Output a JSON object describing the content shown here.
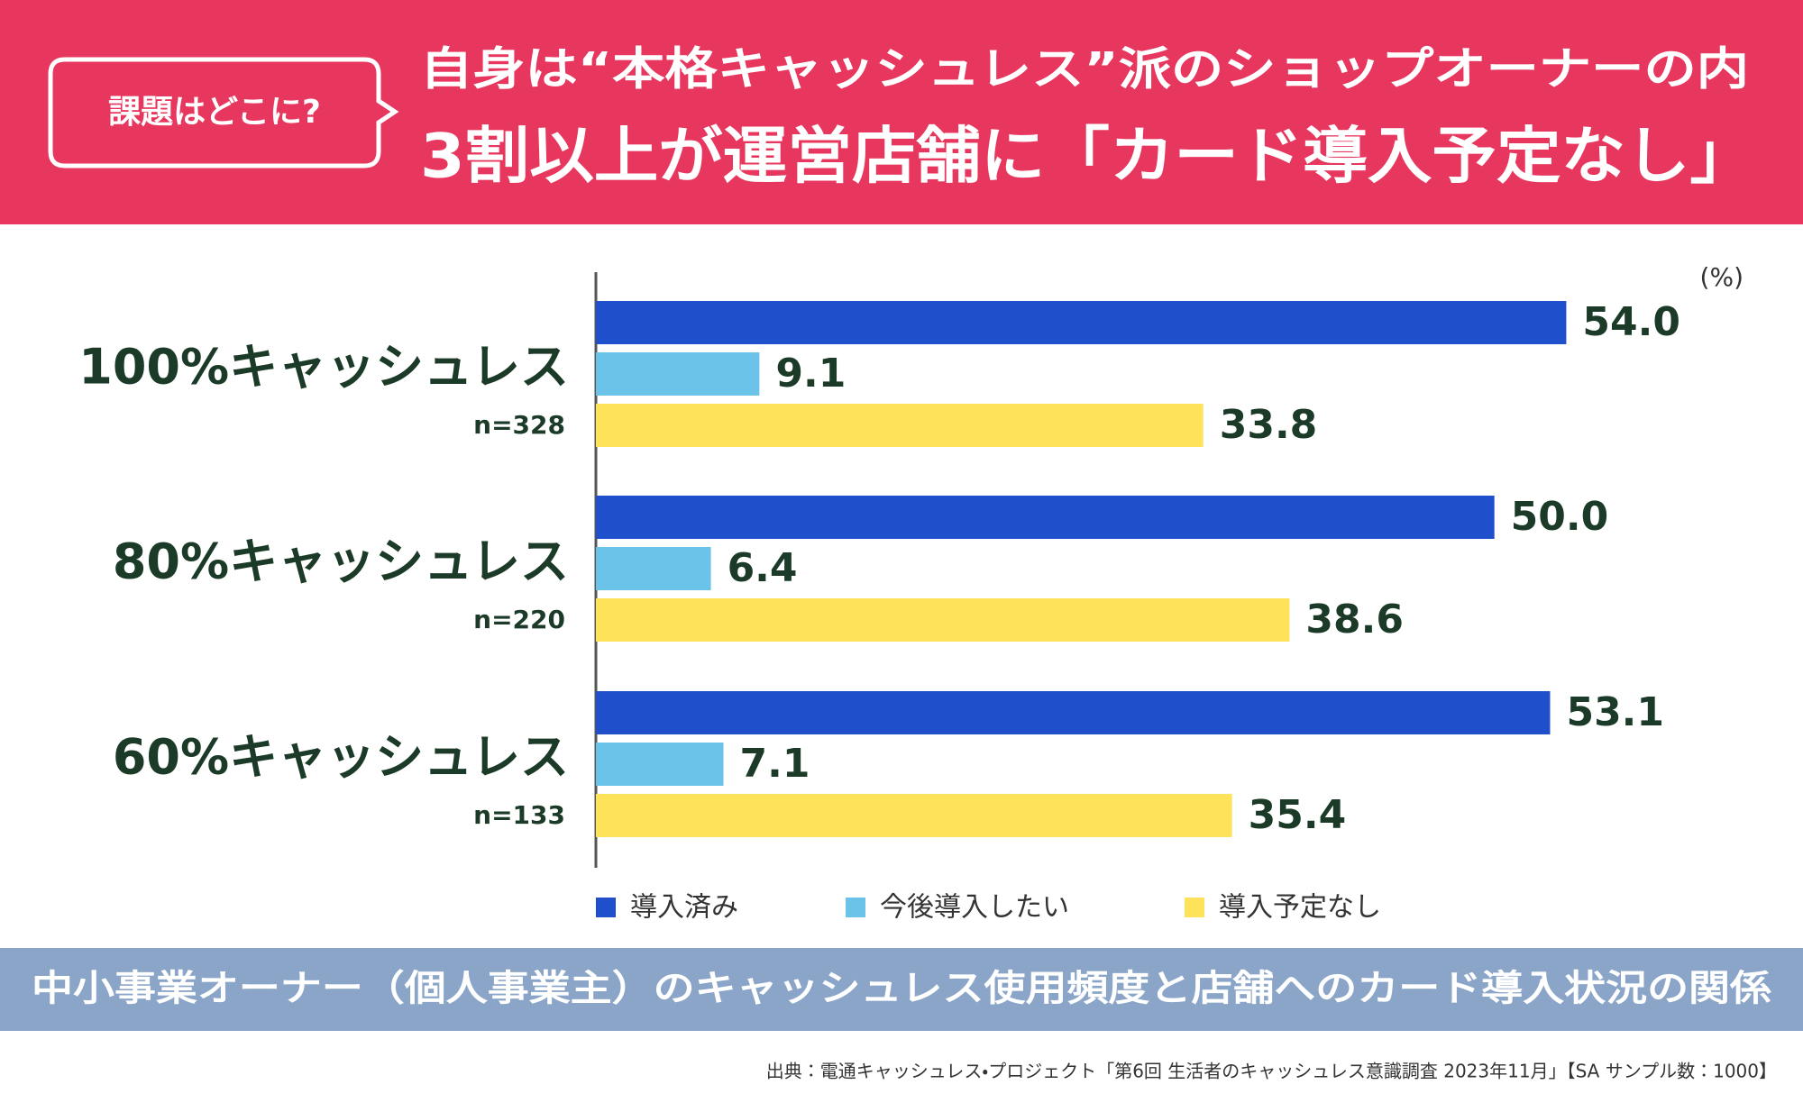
{
  "header": {
    "badge": "課題はどこに?",
    "title_line1": "自身は“本格キャッシュレス”派のショップオーナーの内",
    "title_line2": "3割以上が運営店舗に「カード導入予定なし」"
  },
  "chart_data": {
    "type": "bar",
    "orientation": "horizontal",
    "unit": "(%)",
    "categories": [
      "100%キャッシュレス",
      "80%キャッシュレス",
      "60%キャッシュレス"
    ],
    "sample_sizes": [
      "n=328",
      "n=220",
      "n=133"
    ],
    "xlim": [
      0,
      60
    ],
    "series": [
      {
        "name": "導入済み",
        "color": "#1f4fcb",
        "values": [
          54.0,
          50.0,
          53.1
        ],
        "value_labels": [
          "54.0",
          "50.0",
          "53.1"
        ]
      },
      {
        "name": "今後導入したい",
        "color": "#6cc3ea",
        "values": [
          9.1,
          6.4,
          7.1
        ],
        "value_labels": [
          "9.1",
          "6.4",
          "7.1"
        ]
      },
      {
        "name": "導入予定なし",
        "color": "#fde25a",
        "values": [
          33.8,
          38.6,
          35.4
        ],
        "value_labels": [
          "33.8",
          "38.6",
          "35.4"
        ]
      }
    ]
  },
  "footer": {
    "caption": "中小事業オーナー（個人事業主）のキャッシュレス使用頻度と店舗へのカード導入状況の関係",
    "source": "出典：電通キャッシュレス・プロジェクト「第6回 生活者のキャッシュレス意識調査 2023年11月」【SA サンプル数：1000】"
  }
}
